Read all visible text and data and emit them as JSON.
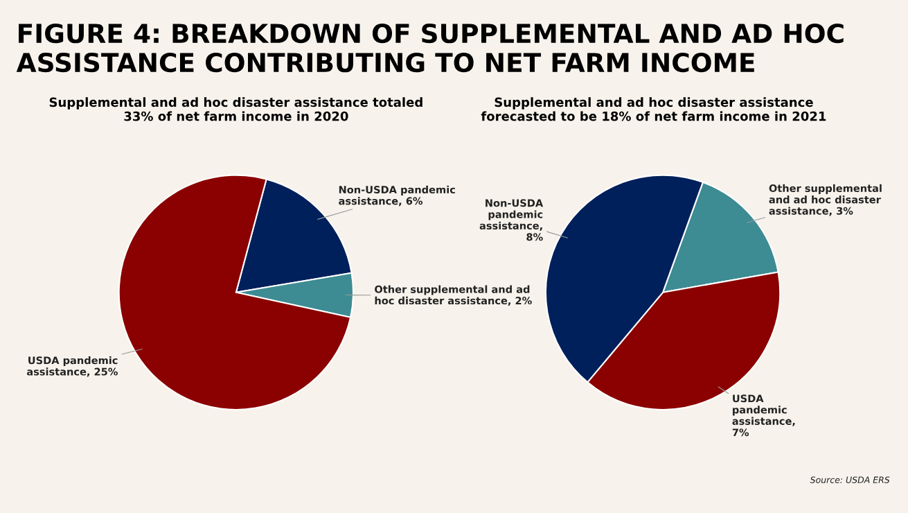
{
  "chart_data": [
    {
      "type": "pie",
      "title": "FIGURE 4: BREAKDOWN OF SUPPLEMENTAL AND AD HOC\nASSISTANCE CONTRIBUTING TO NET FARM INCOME",
      "subtitle": "Supplemental and ad hoc disaster assistance totaled\n33% of net farm income in 2020",
      "categories": [
        "Non-USDA pandemic\nassistance, 6%",
        "Other supplemental and ad\nhoc disaster assistance, 2%",
        "USDA pandemic\nassistance, 25%"
      ],
      "values": [
        6,
        2,
        25
      ],
      "colors": [
        "#00205b",
        "#3d8b93",
        "#8b0000"
      ]
    },
    {
      "type": "pie",
      "subtitle": "Supplemental and ad hoc disaster assistance\nforecasted to be 18% of net farm income in 2021",
      "categories": [
        "Other supplemental\nand ad hoc disaster\nassistance, 3%",
        "USDA\npandemic\nassistance,\n7%",
        "Non-USDA\npandemic\nassistance,\n8%"
      ],
      "values": [
        3,
        7,
        8
      ],
      "colors": [
        "#3d8b93",
        "#8b0000",
        "#00205b"
      ],
      "annotations": [
        "Source: USDA ERS"
      ]
    }
  ]
}
